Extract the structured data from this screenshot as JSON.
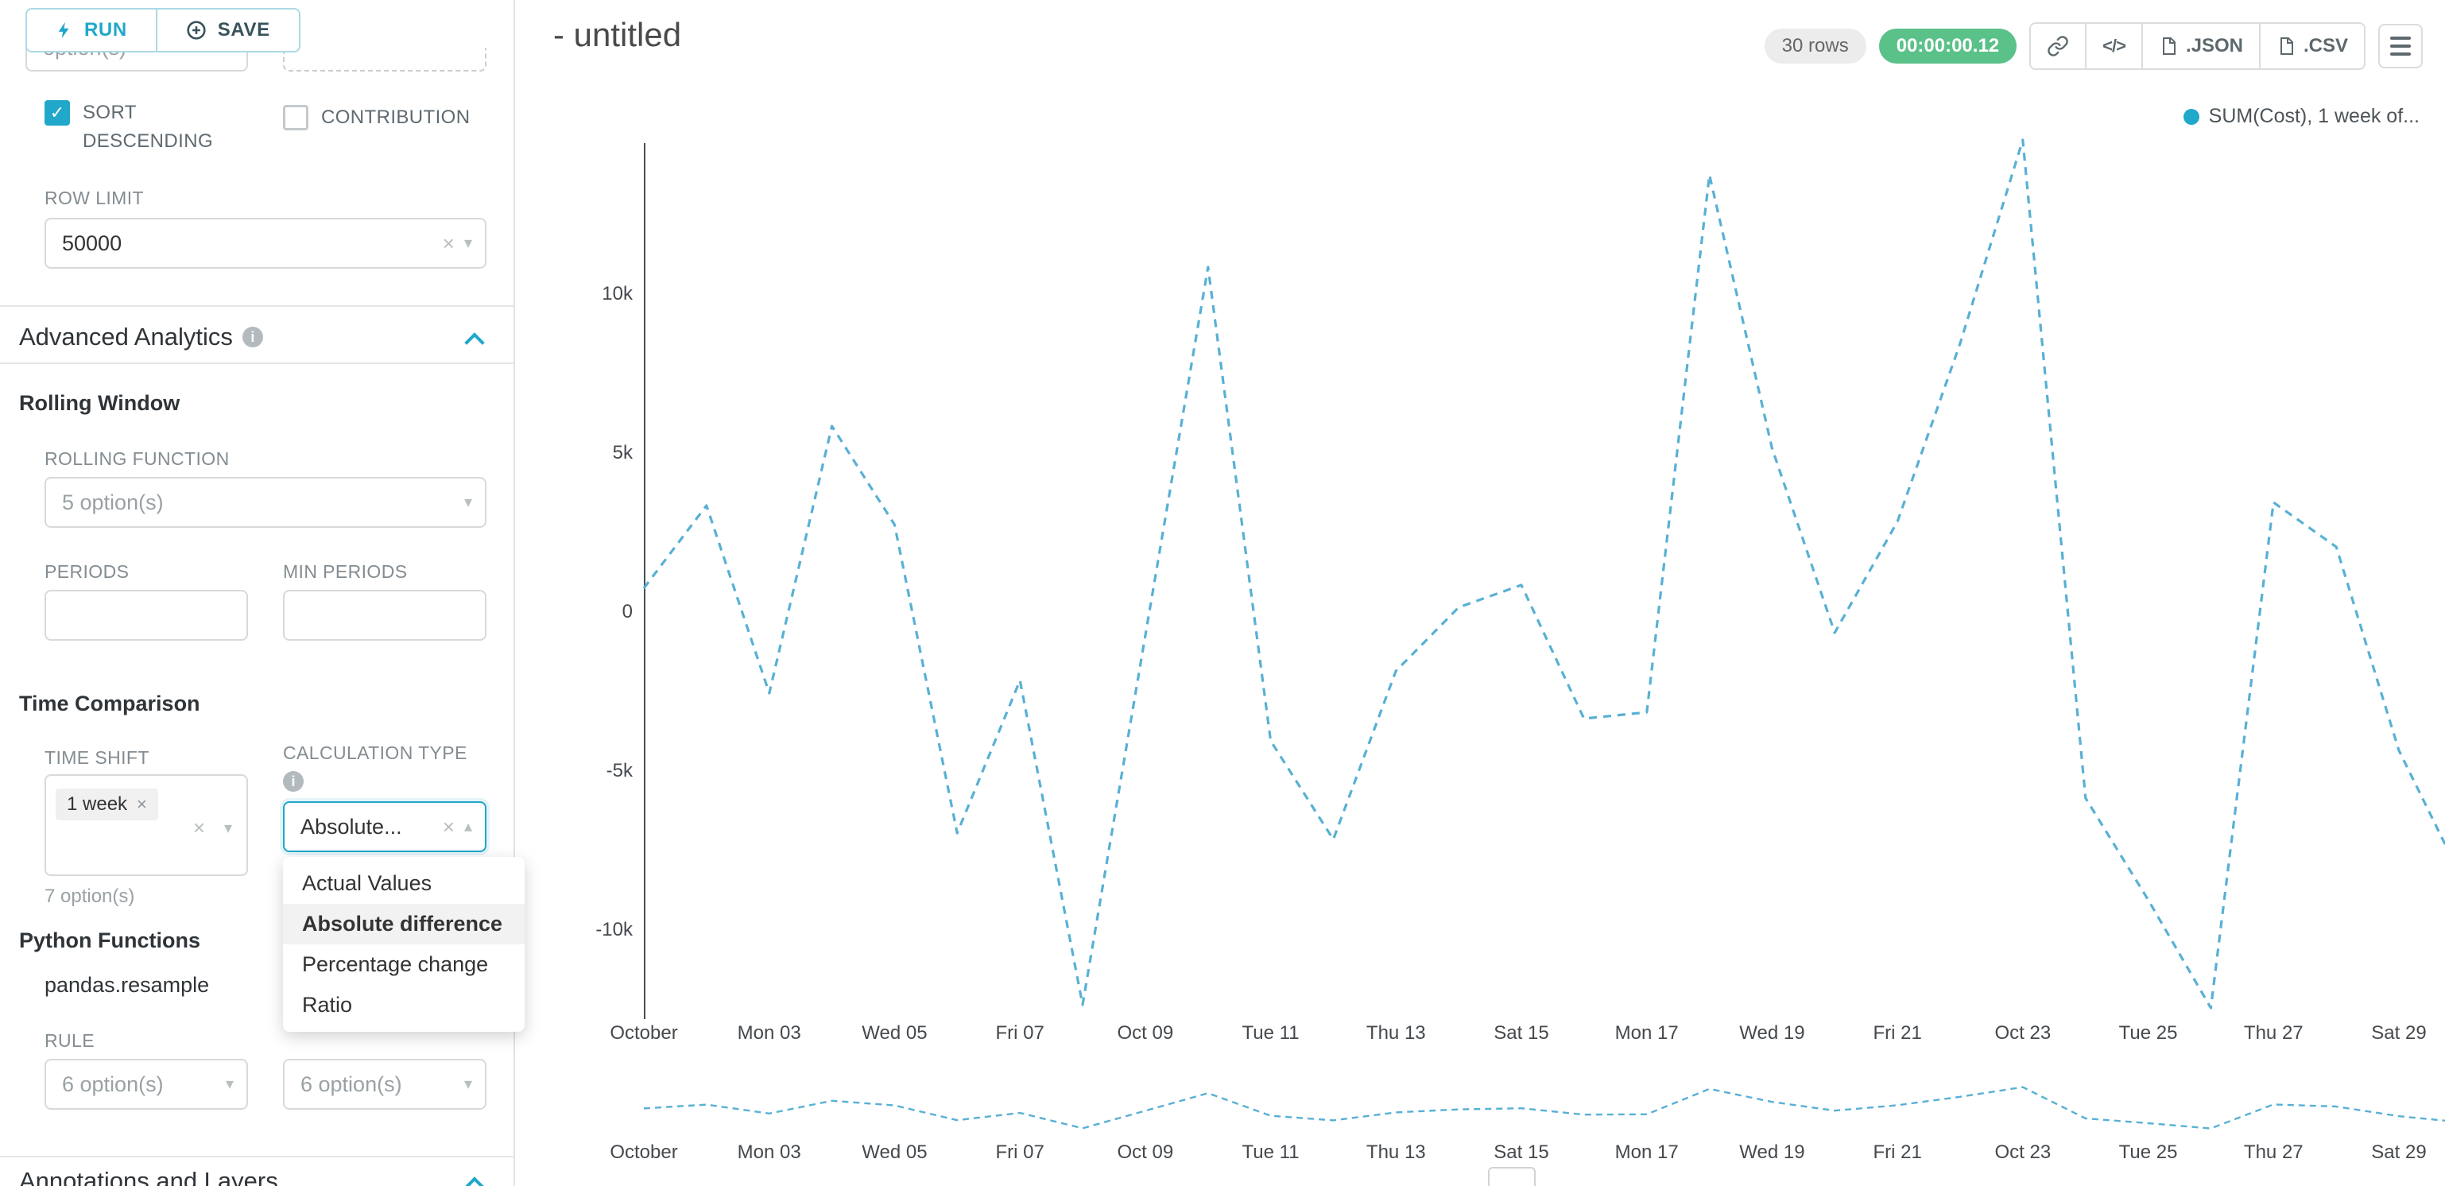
{
  "colors": {
    "accent": "#20a7c9",
    "success_badge": "#5ac189",
    "checkbox_checked": "#20a7c9"
  },
  "sidebar": {
    "run_button": "RUN",
    "save_button": "SAVE",
    "cutoff_option_text": "option(s)",
    "sort_descending_label": "SORT DESCENDING",
    "contribution_label": "CONTRIBUTION",
    "row_limit_label": "ROW LIMIT",
    "row_limit_value": "50000",
    "advanced_analytics_title": "Advanced Analytics",
    "rolling_window_title": "Rolling Window",
    "rolling_function_label": "ROLLING FUNCTION",
    "rolling_function_value": "5 option(s)",
    "periods_label": "PERIODS",
    "min_periods_label": "MIN PERIODS",
    "time_comparison_title": "Time Comparison",
    "time_shift_label": "TIME SHIFT",
    "time_shift_tag": "1 week",
    "time_shift_hint": "7 option(s)",
    "calculation_type_label": "CALCULATION TYPE",
    "calculation_type_value": "Absolute...",
    "calc_menu": {
      "options": [
        "Actual Values",
        "Absolute difference",
        "Percentage change",
        "Ratio"
      ],
      "selected": "Absolute difference"
    },
    "python_functions_title": "Python Functions",
    "pandas_resample": "pandas.resample",
    "rule_label": "RULE",
    "rule_value": "6 option(s)",
    "method_value": "6 option(s)",
    "annotations_title": "Annotations and Layers"
  },
  "header": {
    "title": "- untitled",
    "rows_badge": "30 rows",
    "timer_badge": "00:00:00.12",
    "json_button": ".JSON",
    "csv_button": ".CSV"
  },
  "chart_data": {
    "type": "line",
    "title": "",
    "legend": "SUM(Cost), 1 week of...",
    "legend_dot_color": "#1fa8c9",
    "line_color": "#58b0d4",
    "line_style": "dashed",
    "grid": false,
    "xlabel": "",
    "ylabel": "",
    "ylim": [
      -13000,
      15200
    ],
    "x_tick_labels": [
      "October",
      "Mon 03",
      "Wed 05",
      "Fri 07",
      "Oct 09",
      "Tue 11",
      "Thu 13",
      "Sat 15",
      "Mon 17",
      "Wed 19",
      "Fri 21",
      "Oct 23",
      "Tue 25",
      "Thu 27",
      "Sat 29"
    ],
    "y_tick_labels": [
      "10k",
      "5k",
      "0",
      "-5k",
      "-10k"
    ],
    "y_tick_values": [
      10000,
      5000,
      0,
      -5000,
      -10000
    ],
    "series": [
      {
        "name": "SUM(Cost), 1 week of...",
        "x_day_of_month": [
          1,
          2,
          3,
          4,
          5,
          6,
          7,
          8,
          9,
          10,
          11,
          12,
          13,
          14,
          15,
          16,
          17,
          18,
          19,
          20,
          21,
          22,
          23,
          24,
          25,
          26,
          27,
          28,
          29,
          30
        ],
        "values": [
          800,
          3400,
          -2500,
          5900,
          2800,
          -6900,
          -2100,
          -12300,
          -700,
          10900,
          -4000,
          -7100,
          -1800,
          200,
          900,
          -3300,
          -3100,
          13800,
          5200,
          -600,
          2900,
          8500,
          14900,
          -5800,
          -9000,
          -12400,
          3500,
          2100,
          -4300,
          -8300
        ]
      }
    ],
    "mini_chart": true
  }
}
